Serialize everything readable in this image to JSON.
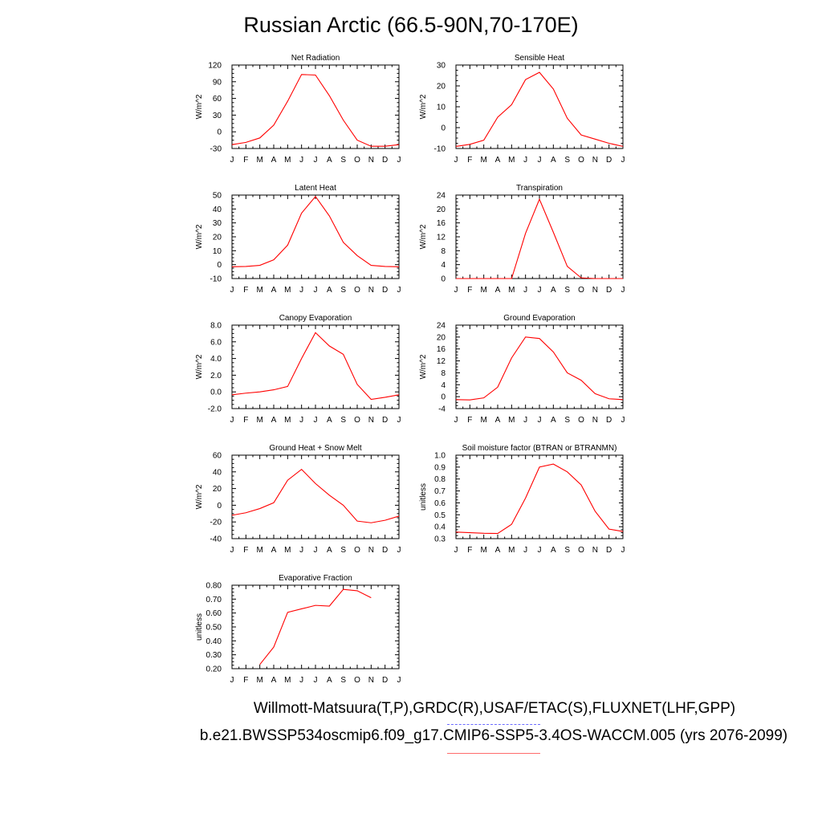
{
  "title": "Russian Arctic (66.5-90N,70-170E)",
  "legend": {
    "observations": "Willmott-Matsuura(T,P),GRDC(R),USAF/ETAC(S),FLUXNET(LHF,GPP)",
    "model": "b.e21.BWSSP534oscmip6.f09_g17.CMIP6-SSP5-3.4OS-WACCM.005 (yrs 2076-2099)",
    "obs_color": "#6b6bff",
    "model_color": "#ff6b6b"
  },
  "chart_data": [
    {
      "type": "line",
      "title": "Net Radiation",
      "ylabel": "W/m^2",
      "x": [
        "J",
        "F",
        "M",
        "A",
        "M",
        "J",
        "J",
        "A",
        "S",
        "O",
        "N",
        "D",
        "J"
      ],
      "ylim": [
        -30,
        120
      ],
      "yticks": [
        "-30",
        "0",
        "30",
        "60",
        "90",
        "120"
      ],
      "series": [
        {
          "values": [
            -23,
            -19,
            -11,
            12,
            55,
            103,
            102,
            65,
            21,
            -15,
            -26,
            -26,
            -23
          ],
          "color": "#ff0000"
        }
      ]
    },
    {
      "type": "line",
      "title": "Sensible Heat",
      "ylabel": "W/m^2",
      "x": [
        "J",
        "F",
        "M",
        "A",
        "M",
        "J",
        "J",
        "A",
        "S",
        "O",
        "N",
        "D",
        "J"
      ],
      "ylim": [
        -10,
        30
      ],
      "yticks": [
        "-10",
        "0",
        "10",
        "20",
        "30"
      ],
      "series": [
        {
          "values": [
            -9,
            -8,
            -6,
            5,
            11,
            23,
            26.5,
            18.5,
            4.5,
            -3.5,
            -5.5,
            -7.5,
            -9
          ],
          "color": "#ff0000"
        }
      ]
    },
    {
      "type": "line",
      "title": "Latent Heat",
      "ylabel": "W/m^2",
      "x": [
        "J",
        "F",
        "M",
        "A",
        "M",
        "J",
        "J",
        "A",
        "S",
        "O",
        "N",
        "D",
        "J"
      ],
      "ylim": [
        -10,
        50
      ],
      "yticks": [
        "-10",
        "0",
        "10",
        "20",
        "30",
        "40",
        "50"
      ],
      "series": [
        {
          "values": [
            -1.5,
            -1.3,
            -0.5,
            3.5,
            14,
            37,
            49,
            35,
            16,
            6.5,
            -0.5,
            -1.3,
            -1.5
          ],
          "color": "#ff0000"
        }
      ]
    },
    {
      "type": "line",
      "title": "Transpiration",
      "ylabel": "W/m^2",
      "x": [
        "J",
        "F",
        "M",
        "A",
        "M",
        "J",
        "J",
        "A",
        "S",
        "O",
        "N",
        "D",
        "J"
      ],
      "ylim": [
        0,
        24
      ],
      "yticks": [
        "0",
        "4",
        "8",
        "12",
        "16",
        "20",
        "24"
      ],
      "series": [
        {
          "values": [
            0,
            0,
            0,
            0,
            0,
            13,
            22.8,
            13.3,
            3.5,
            0.2,
            0,
            0,
            0
          ],
          "color": "#ff0000"
        }
      ]
    },
    {
      "type": "line",
      "title": "Canopy Evaporation",
      "ylabel": "W/m^2",
      "x": [
        "J",
        "F",
        "M",
        "A",
        "M",
        "J",
        "J",
        "A",
        "S",
        "O",
        "N",
        "D",
        "J"
      ],
      "ylim": [
        -2,
        8
      ],
      "yticks": [
        "-2.0",
        "0.0",
        "2.0",
        "4.0",
        "6.0",
        "8.0"
      ],
      "series": [
        {
          "values": [
            -0.35,
            -0.15,
            0,
            0.25,
            0.65,
            4,
            7.1,
            5.5,
            4.5,
            0.9,
            -0.9,
            -0.65,
            -0.35
          ],
          "color": "#ff0000"
        }
      ]
    },
    {
      "type": "line",
      "title": "Ground Evaporation",
      "ylabel": "W/m^2",
      "x": [
        "J",
        "F",
        "M",
        "A",
        "M",
        "J",
        "J",
        "A",
        "S",
        "O",
        "N",
        "D",
        "J"
      ],
      "ylim": [
        -4,
        24
      ],
      "yticks": [
        "-4",
        "0",
        "4",
        "8",
        "12",
        "16",
        "20",
        "24"
      ],
      "series": [
        {
          "values": [
            -1,
            -1.1,
            -0.4,
            3.2,
            13,
            20,
            19.5,
            15,
            8,
            5.5,
            1,
            -0.7,
            -1
          ],
          "color": "#ff0000"
        }
      ]
    },
    {
      "type": "line",
      "title": "Ground Heat + Snow Melt",
      "ylabel": "W/m^2",
      "x": [
        "J",
        "F",
        "M",
        "A",
        "M",
        "J",
        "J",
        "A",
        "S",
        "O",
        "N",
        "D",
        "J"
      ],
      "ylim": [
        -40,
        60
      ],
      "yticks": [
        "-40",
        "-20",
        "0",
        "20",
        "40",
        "60"
      ],
      "series": [
        {
          "values": [
            -12,
            -9,
            -4,
            3,
            30,
            43,
            26,
            12,
            0,
            -19,
            -21,
            -18,
            -13
          ],
          "color": "#ff0000"
        }
      ]
    },
    {
      "type": "line",
      "title": "Soil moisture factor (BTRAN or BTRANMN)",
      "ylabel": "unitless",
      "x": [
        "J",
        "F",
        "M",
        "A",
        "M",
        "J",
        "J",
        "A",
        "S",
        "O",
        "N",
        "D",
        "J"
      ],
      "ylim": [
        0.3,
        1.0
      ],
      "yticks": [
        "0.3",
        "0.4",
        "0.5",
        "0.6",
        "0.7",
        "0.8",
        "0.9",
        "1.0"
      ],
      "series": [
        {
          "values": [
            0.355,
            0.35,
            0.345,
            0.343,
            0.42,
            0.64,
            0.9,
            0.925,
            0.86,
            0.75,
            0.53,
            0.38,
            0.36
          ],
          "color": "#ff0000"
        }
      ]
    },
    {
      "type": "line",
      "title": "Evaporative Fraction",
      "ylabel": "unitless",
      "x": [
        "J",
        "F",
        "M",
        "A",
        "M",
        "J",
        "J",
        "A",
        "S",
        "O",
        "N",
        "D",
        "J"
      ],
      "ylim": [
        0.2,
        0.8
      ],
      "yticks": [
        "0.20",
        "0.30",
        "0.40",
        "0.50",
        "0.60",
        "0.70",
        "0.80"
      ],
      "series": [
        {
          "values": [
            null,
            null,
            0.23,
            0.355,
            0.605,
            0.63,
            0.655,
            0.65,
            0.77,
            0.76,
            0.71,
            null,
            null
          ],
          "color": "#ff0000"
        }
      ]
    }
  ]
}
